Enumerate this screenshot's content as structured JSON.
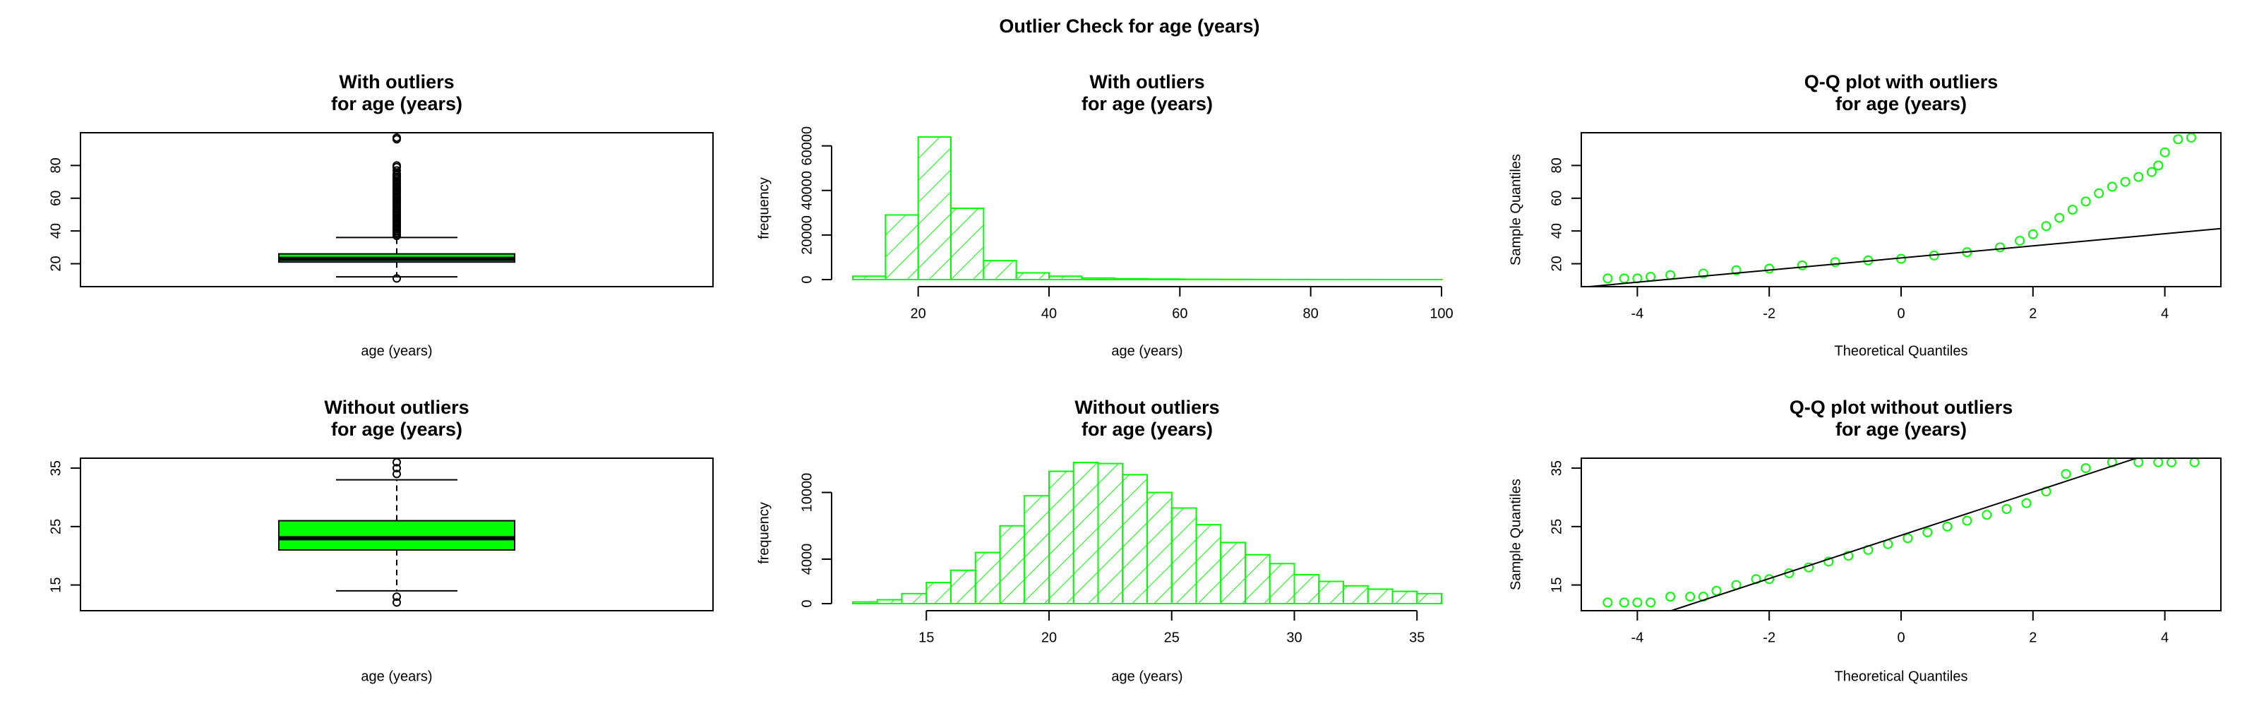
{
  "title": "Outlier Check for  age (years)",
  "chart_data": [
    {
      "type": "box",
      "title": [
        "With outliers",
        "for age (years)"
      ],
      "xlabel": "age (years)",
      "color": "#00ff00",
      "ylim": [
        6,
        100
      ],
      "yticks": [
        20,
        40,
        60,
        80
      ],
      "whisker_low": 12,
      "q1": 21,
      "median": 23,
      "q3": 26,
      "whisker_high": 36,
      "outliers": [
        11,
        37,
        38,
        39,
        40,
        41,
        42,
        43,
        44,
        45,
        46,
        47,
        48,
        49,
        50,
        51,
        52,
        53,
        54,
        55,
        56,
        57,
        58,
        59,
        60,
        61,
        62,
        63,
        64,
        65,
        66,
        67,
        68,
        69,
        70,
        71,
        72,
        73,
        74,
        75,
        77,
        79,
        80,
        96,
        97
      ]
    },
    {
      "type": "histogram",
      "title": [
        "With outliers",
        "for age (years)"
      ],
      "xlabel": "age (years)",
      "ylabel": "frequency",
      "color": "#00ff00",
      "bins": [
        10,
        15,
        20,
        25,
        30,
        35,
        40,
        45,
        50,
        55,
        60,
        65,
        70,
        75,
        80,
        85,
        90,
        95,
        100
      ],
      "values": [
        1500,
        29000,
        64000,
        32000,
        8500,
        3000,
        1500,
        700,
        400,
        250,
        150,
        100,
        80,
        60,
        40,
        30,
        20,
        10
      ],
      "xlim": [
        10,
        100
      ],
      "xticks": [
        20,
        40,
        60,
        80,
        100
      ],
      "ylim": [
        0,
        64000
      ],
      "yticks": [
        0,
        20000,
        40000,
        60000
      ]
    },
    {
      "type": "qq",
      "title": [
        "Q-Q plot with outliers",
        "for age (years)"
      ],
      "xlabel": "Theoretical Quantiles",
      "ylabel": "Sample Quantiles",
      "color": "#00ff00",
      "x": [
        -4.45,
        -4.2,
        -4.0,
        -3.8,
        -3.5,
        -3.0,
        -2.5,
        -2.0,
        -1.5,
        -1.0,
        -0.5,
        0,
        0.5,
        1.0,
        1.5,
        1.8,
        2.0,
        2.2,
        2.4,
        2.6,
        2.8,
        3.0,
        3.2,
        3.4,
        3.6,
        3.8,
        3.9,
        4.0,
        4.2,
        4.4
      ],
      "y": [
        11,
        11,
        11,
        12,
        13,
        14,
        16,
        17,
        19,
        21,
        22,
        23,
        25,
        27,
        30,
        34,
        38,
        43,
        48,
        53,
        58,
        63,
        67,
        70,
        73,
        76,
        80,
        88,
        96,
        97
      ],
      "reference_line": {
        "intercept": 23.5,
        "slope": 3.7
      },
      "xlim": [
        -4.85,
        4.85
      ],
      "xticks": [
        -4,
        -2,
        0,
        2,
        4
      ],
      "ylim": [
        6,
        100
      ],
      "yticks": [
        20,
        40,
        60,
        80
      ]
    },
    {
      "type": "box",
      "title": [
        "Without outliers",
        "for age (years)"
      ],
      "xlabel": "age (years)",
      "color": "#00ff00",
      "ylim": [
        10.6,
        36.7
      ],
      "yticks": [
        15,
        25,
        35
      ],
      "whisker_low": 14,
      "q1": 21,
      "median": 23,
      "q3": 26,
      "whisker_high": 33,
      "outliers": [
        12,
        13,
        34,
        35,
        36
      ]
    },
    {
      "type": "histogram",
      "title": [
        "Without outliers",
        "for age (years)"
      ],
      "xlabel": "age (years)",
      "ylabel": "frequency",
      "color": "#00ff00",
      "bins": [
        12,
        13,
        14,
        15,
        16,
        17,
        18,
        19,
        20,
        21,
        22,
        23,
        24,
        25,
        26,
        27,
        28,
        29,
        30,
        31,
        32,
        33,
        34,
        35,
        36
      ],
      "values": [
        150,
        350,
        900,
        1900,
        3000,
        4600,
        7000,
        9700,
        11900,
        12700,
        12600,
        11600,
        10000,
        8600,
        7100,
        5500,
        4400,
        3600,
        2600,
        2000,
        1600,
        1300,
        1100,
        900
      ],
      "xlim": [
        12,
        36
      ],
      "xticks": [
        15,
        20,
        25,
        30,
        35
      ],
      "ylim": [
        0,
        12700
      ],
      "yticks": [
        0,
        4000,
        10000
      ]
    },
    {
      "type": "qq",
      "title": [
        "Q-Q plot without outliers",
        "for age (years)"
      ],
      "xlabel": "Theoretical Quantiles",
      "ylabel": "Sample Quantiles",
      "color": "#00ff00",
      "x": [
        -4.45,
        -4.2,
        -4.0,
        -3.8,
        -3.5,
        -3.2,
        -3.0,
        -2.8,
        -2.5,
        -2.2,
        -2.0,
        -1.7,
        -1.4,
        -1.1,
        -0.8,
        -0.5,
        -0.2,
        0.1,
        0.4,
        0.7,
        1.0,
        1.3,
        1.6,
        1.9,
        2.2,
        2.5,
        2.8,
        3.2,
        3.6,
        3.9,
        4.1,
        4.45
      ],
      "y": [
        12,
        12,
        12,
        12,
        13,
        13,
        13,
        14,
        15,
        16,
        16,
        17,
        18,
        19,
        20,
        21,
        22,
        23,
        24,
        25,
        26,
        27,
        28,
        29,
        31,
        34,
        35,
        36,
        36,
        36,
        36,
        36
      ],
      "reference_line": {
        "intercept": 23.5,
        "slope": 3.7
      },
      "xlim": [
        -4.85,
        4.85
      ],
      "xticks": [
        -4,
        -2,
        0,
        2,
        4
      ],
      "ylim": [
        10.6,
        36.7
      ],
      "yticks": [
        15,
        25,
        35
      ]
    }
  ]
}
